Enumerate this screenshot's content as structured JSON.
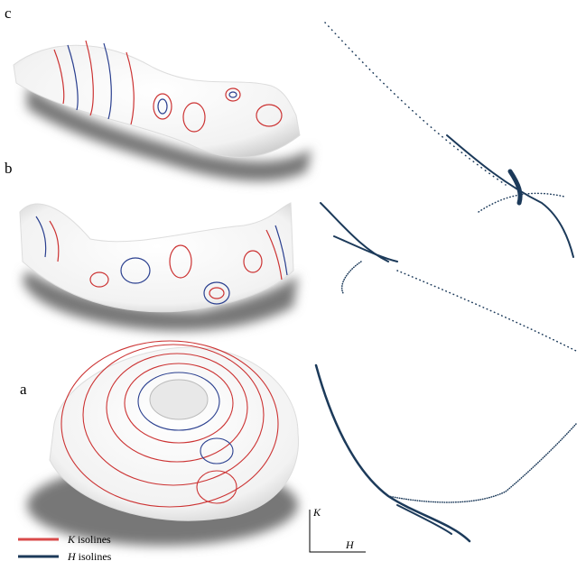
{
  "panels": [
    {
      "label": "c"
    },
    {
      "label": "b"
    },
    {
      "label": "a"
    }
  ],
  "legend": [
    {
      "symbol": "K",
      "text": "isolines"
    },
    {
      "symbol": "H",
      "text": "isolines"
    }
  ],
  "axes": {
    "y": "K",
    "x": "H"
  }
}
